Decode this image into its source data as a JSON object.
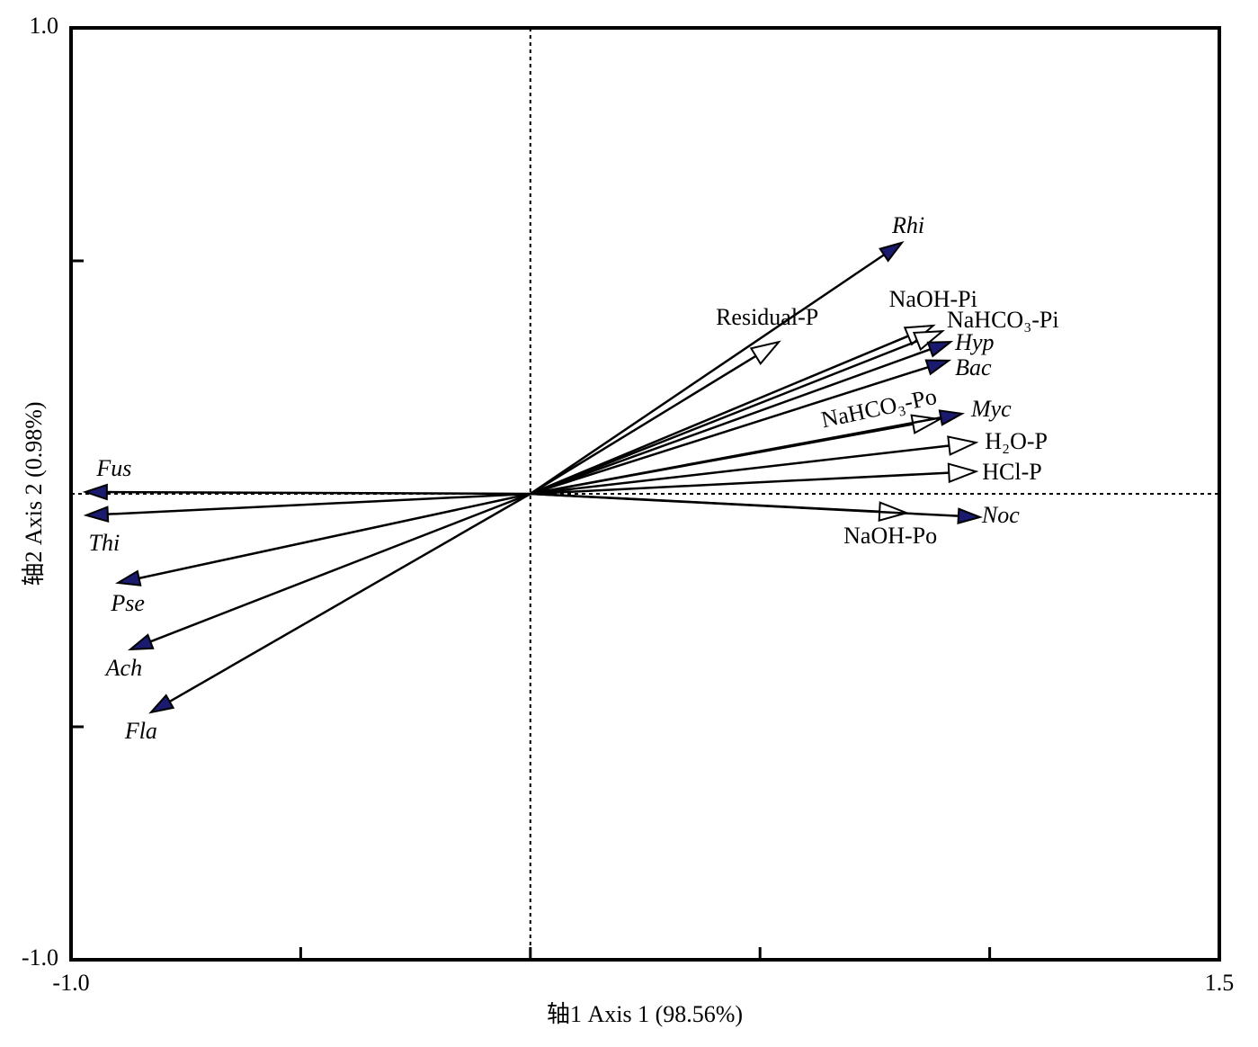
{
  "chart_data": {
    "type": "biplot",
    "x_label": "轴1 Axis 1 (98.56%)",
    "y_label": "轴2 Axis 2 (0.98%)",
    "xlim": [
      -1.0,
      1.5
    ],
    "ylim": [
      -1.0,
      1.0
    ],
    "xticks": [
      {
        "value": -1.0,
        "label": "-1.0"
      },
      {
        "value": -0.5,
        "label": null
      },
      {
        "value": 0,
        "label": null
      },
      {
        "value": 0.5,
        "label": null
      },
      {
        "value": 1.0,
        "label": null
      },
      1.5
    ],
    "yticks": [
      {
        "value": -1.0,
        "label": "-1.0"
      },
      {
        "value": -0.5,
        "label": null
      },
      {
        "value": 0.5,
        "label": null
      },
      {
        "value": 1.0,
        "label": "1.0"
      }
    ],
    "species_color": "#1a1a6e",
    "species": [
      {
        "label": "Rhi",
        "x": 0.809,
        "y": 0.539
      },
      {
        "label": "Hyp",
        "x": 0.915,
        "y": 0.326
      },
      {
        "label": "Bac",
        "x": 0.911,
        "y": 0.286
      },
      {
        "label": "Myc",
        "x": 0.94,
        "y": 0.172
      },
      {
        "label": "Noc",
        "x": 0.979,
        "y": -0.05
      },
      {
        "label": "Fus",
        "x": -0.969,
        "y": 0.004
      },
      {
        "label": "Thi",
        "x": -0.967,
        "y": -0.046
      },
      {
        "label": "Pse",
        "x": -0.898,
        "y": -0.191
      },
      {
        "label": "Ach",
        "x": -0.871,
        "y": -0.334
      },
      {
        "label": "Fla",
        "x": -0.826,
        "y": -0.469
      }
    ],
    "variables": [
      {
        "label": "Residual-P",
        "x": 0.541,
        "y": 0.326
      },
      {
        "label": "NaOH-Pi",
        "x": 0.877,
        "y": 0.361
      },
      {
        "label": "NaHCO₃-Pi",
        "x": 0.897,
        "y": 0.349
      },
      {
        "label": "NaHCO₃-Po",
        "x": 0.891,
        "y": 0.16
      },
      {
        "label": "H₂O-P",
        "x": 0.97,
        "y": 0.11
      },
      {
        "label": "HCl-P",
        "x": 0.97,
        "y": 0.048
      },
      {
        "label": "NaOH-Po",
        "x": 0.819,
        "y": -0.041
      }
    ]
  }
}
